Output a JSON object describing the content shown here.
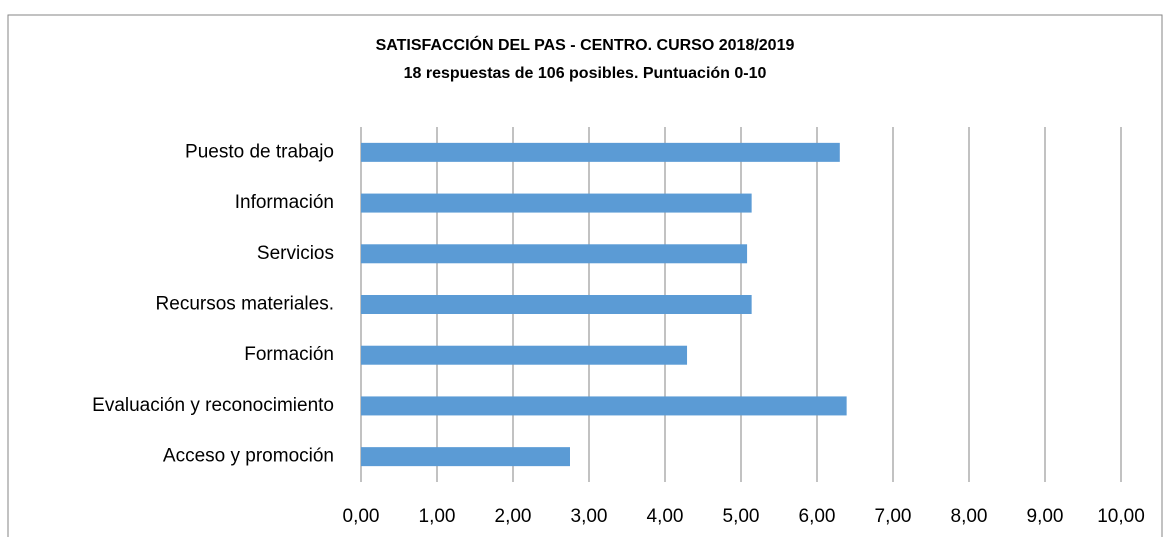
{
  "chart_data": {
    "type": "barh",
    "title": "SATISFACCIÓN DEL PAS - CENTRO. CURSO 2018/2019",
    "subtitle": "18 respuestas de 106 posibles. Puntuación 0-10",
    "categories": [
      "Puesto de trabajo",
      "Información",
      "Servicios",
      "Recursos materiales.",
      "Formación",
      "Evaluación y reconocimiento",
      "Acceso y promoción"
    ],
    "values": [
      6.3,
      5.14,
      5.08,
      5.14,
      4.29,
      6.39,
      2.75
    ],
    "color": "#5b9bd5",
    "xlim": [
      0,
      10
    ],
    "xticks": [
      {
        "value": 0,
        "label": "0,00"
      },
      {
        "value": 1,
        "label": "1,00"
      },
      {
        "value": 2,
        "label": "2,00"
      },
      {
        "value": 3,
        "label": "3,00"
      },
      {
        "value": 4,
        "label": "4,00"
      },
      {
        "value": 5,
        "label": "5,00"
      },
      {
        "value": 6,
        "label": "6,00"
      },
      {
        "value": 7,
        "label": "7,00"
      },
      {
        "value": 8,
        "label": "8,00"
      },
      {
        "value": 9,
        "label": "9,00"
      },
      {
        "value": 10,
        "label": "10,00"
      }
    ],
    "grid": true
  }
}
